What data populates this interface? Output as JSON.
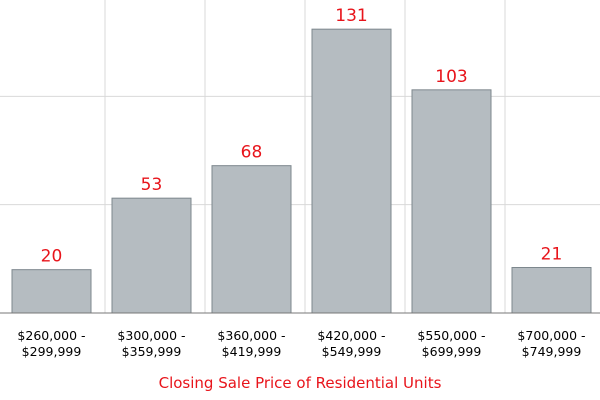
{
  "chart_data": {
    "type": "bar",
    "title": "",
    "xlabel": "Closing Sale Price of Residential Units",
    "ylabel": "",
    "categories": [
      [
        "$260,000 -",
        "$299,999"
      ],
      [
        "$300,000 -",
        "$359,999"
      ],
      [
        "$360,000 -",
        "$419,999"
      ],
      [
        "$420,000 -",
        "$549,999"
      ],
      [
        "$550,000 -",
        "$699,999"
      ],
      [
        "$700,000 -",
        "$749,999"
      ]
    ],
    "values": [
      20,
      53,
      68,
      131,
      103,
      21
    ],
    "data_labels": [
      "20",
      "53",
      "68",
      "131",
      "103",
      "21"
    ],
    "ylim": [
      0,
      150
    ],
    "y_gridlines": [
      50,
      100,
      150
    ],
    "grid": true,
    "legend": "none"
  },
  "colors": {
    "bar_fill": "#b5bcc1",
    "bar_stroke": "#7d878d",
    "value_label": "#e8141b",
    "axis_title": "#e8141b",
    "grid": "#d9d9d9",
    "axis": "#777777"
  }
}
